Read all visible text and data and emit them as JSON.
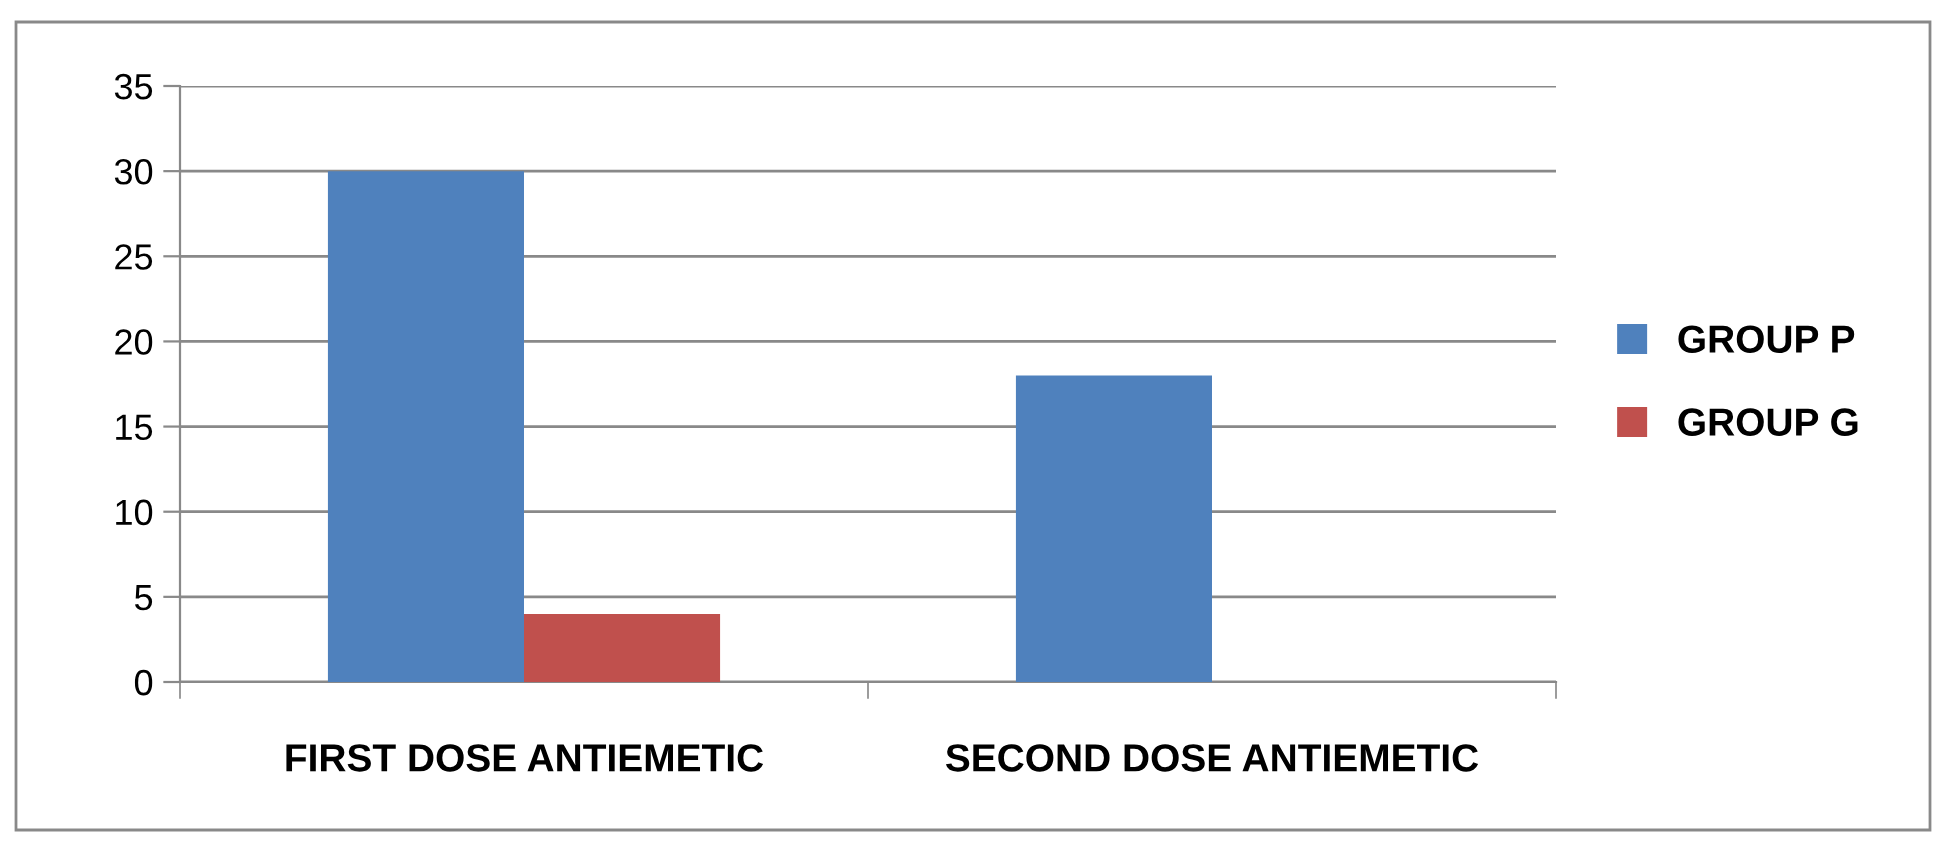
{
  "chart_data": {
    "type": "bar",
    "categories": [
      "FIRST DOSE ANTIEMETIC",
      "SECOND DOSE ANTIEMETIC"
    ],
    "series": [
      {
        "name": "GROUP P",
        "color": "#4f81bd",
        "values": [
          30,
          18
        ]
      },
      {
        "name": "GROUP G",
        "color": "#c0504d",
        "values": [
          4,
          0
        ]
      }
    ],
    "ylim": [
      0,
      35
    ],
    "yticks": [
      0,
      5,
      10,
      15,
      20,
      25,
      30,
      35
    ],
    "grid": "y",
    "legend": "right"
  }
}
